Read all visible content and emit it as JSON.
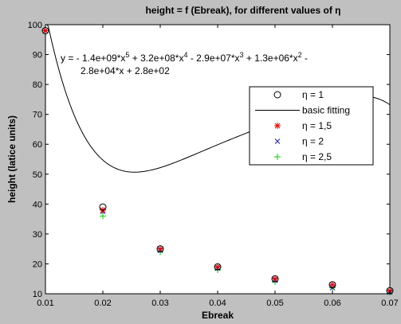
{
  "chart_data": {
    "type": "scatter",
    "title": "height = f (Ebreak), for different values of η",
    "xlabel": "Ebreak",
    "ylabel": "height (latice units)",
    "xlim": [
      0.01,
      0.07
    ],
    "ylim": [
      10,
      100
    ],
    "xticks": [
      "0.01",
      "0.02",
      "0.03",
      "0.04",
      "0.05",
      "0.06",
      "0.07"
    ],
    "yticks": [
      "10",
      "20",
      "30",
      "40",
      "50",
      "60",
      "70",
      "80",
      "90",
      "100"
    ],
    "grid": false,
    "legend_position": "top-right",
    "equation_line1": "y = - 1.4e+09*x^5 + 3.2e+08*x^4 - 2.9e+07*x^3 + 1.3e+06*x^2 -",
    "equation_line2": "2.8e+04*x + 2.8e+02",
    "series": [
      {
        "name": "η = 1",
        "marker": "circle",
        "color": "#000000",
        "x": [
          0.01,
          0.02,
          0.03,
          0.04,
          0.05,
          0.06,
          0.07
        ],
        "y": [
          98,
          39,
          25,
          19,
          15,
          13,
          11
        ]
      },
      {
        "name": "basic fitting",
        "marker": "line",
        "color": "#000000",
        "coefficients": [
          -1400000000.0,
          320000000.0,
          -29000000.0,
          1300000.0,
          -28000.0,
          280.0
        ]
      },
      {
        "name": "η = 1,5",
        "marker": "star",
        "color": "#e00000",
        "x": [
          0.01,
          0.02,
          0.03,
          0.04,
          0.05,
          0.06,
          0.07
        ],
        "y": [
          98,
          38,
          25,
          19,
          15,
          13,
          11
        ]
      },
      {
        "name": "η = 2",
        "marker": "x",
        "color": "#1a1aa0",
        "x": [
          0.01,
          0.02,
          0.03,
          0.04,
          0.05,
          0.06,
          0.07
        ],
        "y": [
          98,
          37.5,
          24.5,
          18.5,
          14.5,
          12,
          10.5
        ]
      },
      {
        "name": "η = 2,5",
        "marker": "plus",
        "color": "#00cc00",
        "x": [
          0.01,
          0.02,
          0.03,
          0.04,
          0.05,
          0.06,
          0.07
        ],
        "y": [
          98,
          36,
          24,
          18,
          14,
          12,
          10.5
        ]
      }
    ]
  }
}
